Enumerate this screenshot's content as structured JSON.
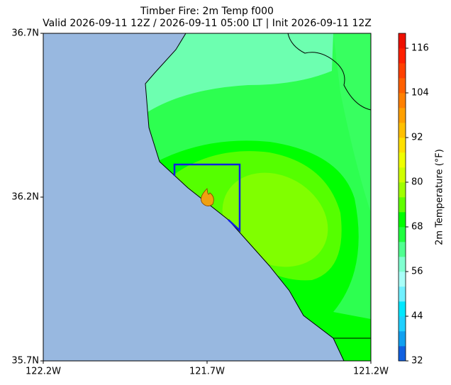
{
  "title": [
    "Timber Fire: 2m Temp f000",
    "Valid 2026-09-11 12Z / 2026-09-11 05:00 LT | Init 2026-09-11 12Z"
  ],
  "map": {
    "lat_lim": [
      35.7,
      36.7
    ],
    "lon_lim": [
      -122.2,
      -121.2
    ],
    "lat_ticks": [
      {
        "value": 36.7,
        "label": "36.7N"
      },
      {
        "value": 36.2,
        "label": "36.2N"
      },
      {
        "value": 35.7,
        "label": "35.7N"
      }
    ],
    "lon_ticks": [
      {
        "value": -122.2,
        "label": "122.2W"
      },
      {
        "value": -121.7,
        "label": "121.7W"
      },
      {
        "value": -121.2,
        "label": "121.2W"
      }
    ]
  },
  "colorbar": {
    "label": "2m Temperature (°F)",
    "lim": [
      32,
      120
    ],
    "ticks": [
      32,
      44,
      56,
      68,
      80,
      92,
      104,
      116
    ],
    "colors": [
      "#1060e0",
      "#10a0f0",
      "#20d0ff",
      "#00e8ff",
      "#70f0ff",
      "#a8fff8",
      "#80ffd0",
      "#50ff90",
      "#20ff40",
      "#00ff00",
      "#60ff00",
      "#a0ff00",
      "#d0ff00",
      "#f0ff00",
      "#ffe000",
      "#ffc000",
      "#ffa000",
      "#ff8000",
      "#ff6000",
      "#ff4000",
      "#ff2000",
      "#ee1000"
    ]
  }
}
